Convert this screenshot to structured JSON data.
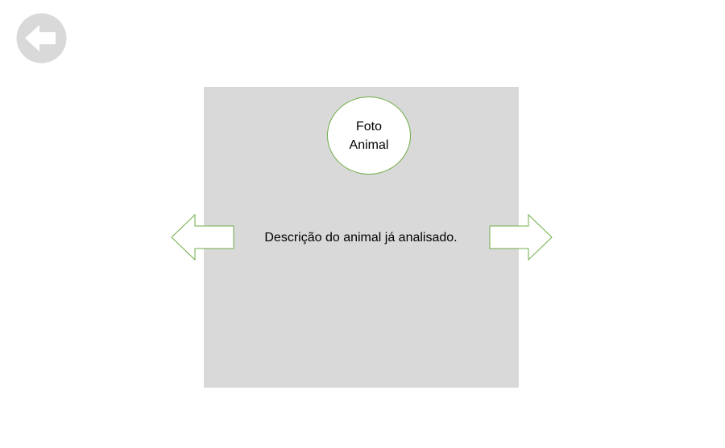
{
  "navigation": {
    "back_icon": "arrow-left-circle-icon",
    "previous_icon": "arrow-left-outline-icon",
    "next_icon": "arrow-right-outline-icon"
  },
  "card": {
    "photo_label": "Foto\nAnimal",
    "description": "Descrição do animal já analisado."
  },
  "colors": {
    "card_background": "#d9d9d9",
    "accent_outline": "#70ad47",
    "back_button": "#d9d9d9"
  }
}
